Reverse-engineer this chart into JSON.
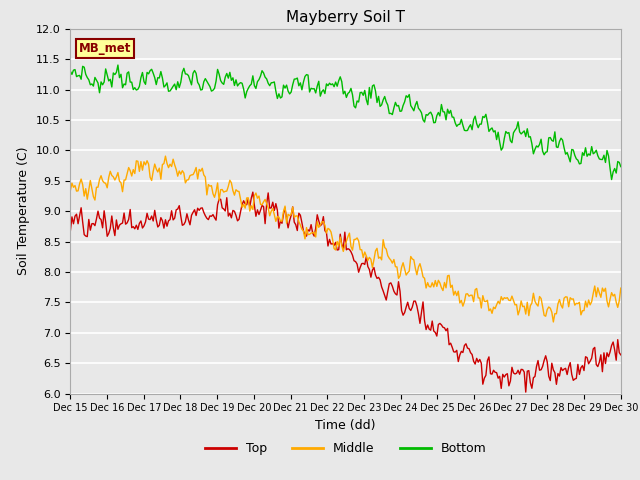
{
  "title": "Mayberry Soil T",
  "xlabel": "Time (dd)",
  "ylabel": "Soil Temperature (C)",
  "ylim": [
    6.0,
    12.0
  ],
  "plot_bg_color": "#e8e8e8",
  "grid_color": "white",
  "annotation_text": "MB_met",
  "annotation_bg": "#ffff99",
  "annotation_border": "#880000",
  "tick_labels": [
    "Dec 15",
    "Dec 16",
    "Dec 17",
    "Dec 18",
    "Dec 19",
    "Dec 20",
    "Dec 21",
    "Dec 22",
    "Dec 23",
    "Dec 24",
    "Dec 25",
    "Dec 26",
    "Dec 27",
    "Dec 28",
    "Dec 29",
    "Dec 30"
  ],
  "top_color": "#cc0000",
  "middle_color": "#ffaa00",
  "bottom_color": "#00bb00",
  "line_width": 1.0
}
